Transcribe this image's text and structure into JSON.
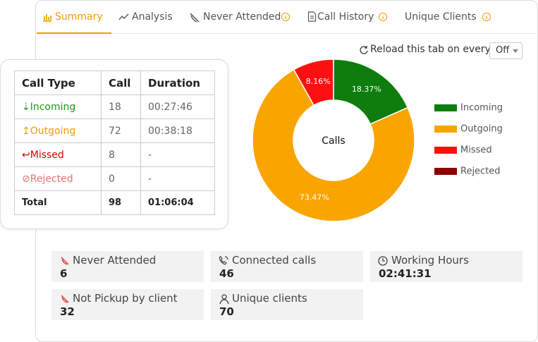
{
  "tabs": [
    "Summary",
    "Analysis",
    "Never Attended",
    "Call History",
    "Unique Clients"
  ],
  "reload": {
    "label": "Reload this tab on every",
    "option": "Off"
  },
  "table": {
    "header": [
      "Call Type",
      "Call",
      "Duration"
    ],
    "rows": [
      [
        "Incoming",
        18,
        "00:27:46"
      ],
      [
        "Outgoing",
        72,
        "00:38:18"
      ],
      [
        "Missed",
        8,
        "-"
      ],
      [
        "Rejected",
        0,
        "-"
      ],
      [
        "Total",
        98,
        "01:06:04"
      ]
    ]
  },
  "chart_data": {
    "type": "donut",
    "center_label": "Calls",
    "categories": [
      "Incoming",
      "Outgoing",
      "Missed",
      "Rejected"
    ],
    "values": [
      18.37,
      73.47,
      8.16,
      0
    ],
    "value_labels": [
      "18.37%",
      "73.47%",
      "8.16%",
      null
    ],
    "colors": [
      "#0e7d0e",
      "#f9a500",
      "#ff1010",
      "#8b0000"
    ],
    "legend": "right"
  },
  "stats": [
    {
      "label": "Never Attended",
      "value": "6"
    },
    {
      "label": "Connected calls",
      "value": "46"
    },
    {
      "label": "Working Hours",
      "value": "02:41:31"
    },
    {
      "label": "Not Pickup by client",
      "value": "32"
    },
    {
      "label": "Unique clients",
      "value": "70"
    }
  ]
}
